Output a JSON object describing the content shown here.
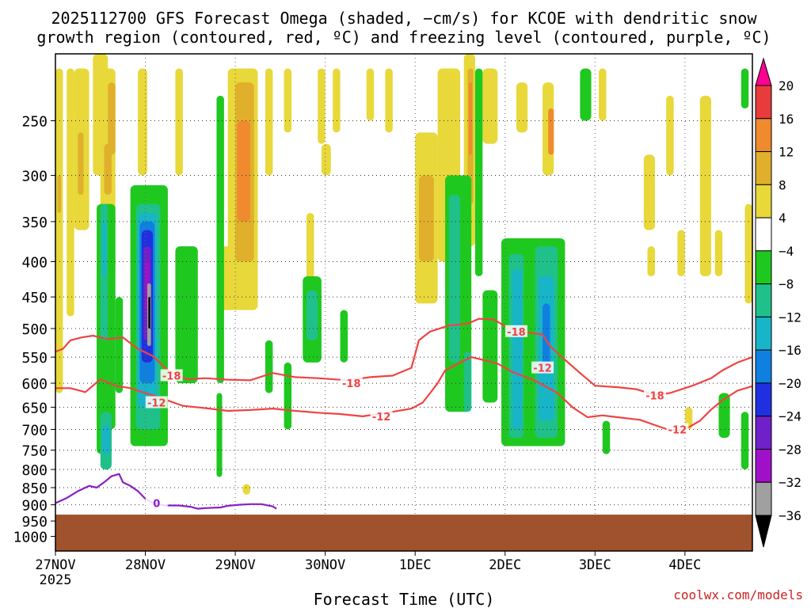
{
  "chart_data": {
    "type": "heatmap",
    "title_line1": "2025112700 GFS Forecast Omega (shaded, −cm/s) for KCOE with dendritic snow",
    "title_line2": "growth region (contoured, red, ºC) and freezing level (contoured, purple, ºC)",
    "xlabel": "Forecast Time (UTC)",
    "ylabel": "",
    "credit": "coolwx.com/models",
    "x_unit": "hours since 2025-11-27 00Z",
    "xlim": [
      0,
      186
    ],
    "x_ticks": [
      {
        "value": 0,
        "label": "27NOV",
        "sublabel": "2025"
      },
      {
        "value": 24,
        "label": "28NOV"
      },
      {
        "value": 48,
        "label": "29NOV"
      },
      {
        "value": 72,
        "label": "30NOV"
      },
      {
        "value": 96,
        "label": "1DEC"
      },
      {
        "value": 120,
        "label": "2DEC"
      },
      {
        "value": 144,
        "label": "3DEC"
      },
      {
        "value": 168,
        "label": "4DEC"
      }
    ],
    "y_unit": "hPa",
    "ylim": [
      1050,
      200
    ],
    "y_ticks": [
      250,
      300,
      350,
      400,
      450,
      500,
      550,
      600,
      650,
      700,
      750,
      800,
      850,
      900,
      950,
      1000
    ],
    "ground_level_hPa": 930,
    "colorbar": {
      "labels": [
        "20",
        "16",
        "12",
        "8",
        "4",
        "−4",
        "−8",
        "−12",
        "−16",
        "−20",
        "−24",
        "−28",
        "−32",
        "−36"
      ],
      "colors": [
        "#ff0090",
        "#e83c3c",
        "#ef8a2e",
        "#e0b02c",
        "#e8d83a",
        "#ffffff",
        "#1fc81f",
        "#20c08a",
        "#18b4c8",
        "#1080e0",
        "#2030e0",
        "#7020c8",
        "#a010c8",
        "#a0a0a0",
        "#000000"
      ]
    },
    "bins": [
      {
        "min": 4,
        "max": 8,
        "color": "#e8d83a"
      },
      {
        "min": 8,
        "max": 12,
        "color": "#e0b02c"
      },
      {
        "min": 12,
        "max": 16,
        "color": "#ef8a2e"
      },
      {
        "min": -8,
        "max": -4,
        "color": "#1fc81f"
      },
      {
        "min": -12,
        "max": -8,
        "color": "#20c08a"
      },
      {
        "min": -16,
        "max": -12,
        "color": "#18b4c8"
      },
      {
        "min": -20,
        "max": -16,
        "color": "#1080e0"
      },
      {
        "min": -24,
        "max": -20,
        "color": "#2030e0"
      },
      {
        "min": -28,
        "max": -24,
        "color": "#7020c8"
      },
      {
        "min": -32,
        "max": -28,
        "color": "#a010c8"
      },
      {
        "min": -36,
        "max": -32,
        "color": "#a0a0a0"
      },
      {
        "min": -40,
        "max": -36,
        "color": "#000000"
      }
    ],
    "omega_features": [
      {
        "t0": 0,
        "t1": 2,
        "p0": 210,
        "p1": 620,
        "v": 6
      },
      {
        "t0": 0.5,
        "t1": 1.5,
        "p0": 300,
        "p1": 340,
        "v": 10
      },
      {
        "t0": 3,
        "t1": 5,
        "p0": 210,
        "p1": 480,
        "v": 6
      },
      {
        "t0": 5,
        "t1": 9,
        "p0": 210,
        "p1": 360,
        "v": 6
      },
      {
        "t0": 6,
        "t1": 7.5,
        "p0": 260,
        "p1": 320,
        "v": 10
      },
      {
        "t0": 10,
        "t1": 14,
        "p0": 200,
        "p1": 300,
        "v": 6
      },
      {
        "t0": 12,
        "t1": 16,
        "p0": 210,
        "p1": 420,
        "v": 6
      },
      {
        "t0": 14,
        "t1": 16,
        "p0": 220,
        "p1": 280,
        "v": 10
      },
      {
        "t0": 13,
        "t1": 15,
        "p0": 270,
        "p1": 320,
        "v": 10
      },
      {
        "t0": 22,
        "t1": 24.5,
        "p0": 210,
        "p1": 300,
        "v": 6
      },
      {
        "t0": 24,
        "t1": 26,
        "p0": 460,
        "p1": 560,
        "v": 6
      },
      {
        "t0": 32,
        "t1": 34,
        "p0": 210,
        "p1": 300,
        "v": 6
      },
      {
        "t0": 33,
        "t1": 35,
        "p0": 400,
        "p1": 560,
        "v": 6
      },
      {
        "t0": 44,
        "t1": 48,
        "p0": 380,
        "p1": 470,
        "v": 6
      },
      {
        "t0": 46,
        "t1": 54,
        "p0": 210,
        "p1": 470,
        "v": 6
      },
      {
        "t0": 48,
        "t1": 53,
        "p0": 220,
        "p1": 400,
        "v": 10
      },
      {
        "t0": 48.5,
        "t1": 52,
        "p0": 250,
        "p1": 350,
        "v": 14
      },
      {
        "t0": 49,
        "t1": 51,
        "p0": 300,
        "p1": 340,
        "v": 18
      },
      {
        "t0": 50,
        "t1": 52,
        "p0": 840,
        "p1": 870,
        "v": 6
      },
      {
        "t0": 56,
        "t1": 58,
        "p0": 210,
        "p1": 300,
        "v": 6
      },
      {
        "t0": 61,
        "t1": 63,
        "p0": 210,
        "p1": 260,
        "v": 6
      },
      {
        "t0": 67,
        "t1": 69,
        "p0": 340,
        "p1": 460,
        "v": 6
      },
      {
        "t0": 70,
        "t1": 72,
        "p0": 210,
        "p1": 270,
        "v": 6
      },
      {
        "t0": 71,
        "t1": 73.5,
        "p0": 270,
        "p1": 300,
        "v": 6
      },
      {
        "t0": 74,
        "t1": 76,
        "p0": 210,
        "p1": 260,
        "v": 6
      },
      {
        "t0": 83,
        "t1": 85,
        "p0": 210,
        "p1": 250,
        "v": 6
      },
      {
        "t0": 88,
        "t1": 90,
        "p0": 210,
        "p1": 260,
        "v": 6
      },
      {
        "t0": 96,
        "t1": 102,
        "p0": 260,
        "p1": 460,
        "v": 6
      },
      {
        "t0": 97,
        "t1": 101,
        "p0": 300,
        "p1": 400,
        "v": 10
      },
      {
        "t0": 102,
        "t1": 108,
        "p0": 210,
        "p1": 400,
        "v": 6
      },
      {
        "t0": 109,
        "t1": 112,
        "p0": 200,
        "p1": 380,
        "v": 6
      },
      {
        "t0": 110,
        "t1": 111.5,
        "p0": 210,
        "p1": 330,
        "v": 10
      },
      {
        "t0": 110.3,
        "t1": 111.2,
        "p0": 220,
        "p1": 280,
        "v": 14
      },
      {
        "t0": 114,
        "t1": 118,
        "p0": 210,
        "p1": 270,
        "v": 6
      },
      {
        "t0": 123,
        "t1": 126,
        "p0": 220,
        "p1": 260,
        "v": 6
      },
      {
        "t0": 130,
        "t1": 133,
        "p0": 220,
        "p1": 300,
        "v": 6
      },
      {
        "t0": 131.5,
        "t1": 133,
        "p0": 240,
        "p1": 280,
        "v": 14
      },
      {
        "t0": 145,
        "t1": 147,
        "p0": 210,
        "p1": 250,
        "v": 6
      },
      {
        "t0": 157,
        "t1": 160,
        "p0": 280,
        "p1": 360,
        "v": 6
      },
      {
        "t0": 158,
        "t1": 160,
        "p0": 380,
        "p1": 420,
        "v": 6
      },
      {
        "t0": 163,
        "t1": 165,
        "p0": 230,
        "p1": 300,
        "v": 6
      },
      {
        "t0": 166,
        "t1": 168,
        "p0": 360,
        "p1": 420,
        "v": 6
      },
      {
        "t0": 168,
        "t1": 170,
        "p0": 650,
        "p1": 700,
        "v": 6
      },
      {
        "t0": 172,
        "t1": 175,
        "p0": 230,
        "p1": 420,
        "v": 6
      },
      {
        "t0": 176,
        "t1": 178,
        "p0": 360,
        "p1": 420,
        "v": 6
      },
      {
        "t0": 184,
        "t1": 186,
        "p0": 330,
        "p1": 460,
        "v": 6
      },
      {
        "t0": 11,
        "t1": 16,
        "p0": 330,
        "p1": 700,
        "v": -6
      },
      {
        "t0": 11,
        "t1": 15,
        "p0": 400,
        "p1": 760,
        "v": -6
      },
      {
        "t0": 12,
        "t1": 15,
        "p0": 660,
        "p1": 800,
        "v": -10
      },
      {
        "t0": 12.5,
        "t1": 14.5,
        "p0": 690,
        "p1": 760,
        "v": -14
      },
      {
        "t0": 12,
        "t1": 14,
        "p0": 330,
        "p1": 520,
        "v": -10
      },
      {
        "t0": 12.5,
        "t1": 13.5,
        "p0": 350,
        "p1": 420,
        "v": -14
      },
      {
        "t0": 16,
        "t1": 18,
        "p0": 450,
        "p1": 620,
        "v": -6
      },
      {
        "t0": 20,
        "t1": 30,
        "p0": 310,
        "p1": 740,
        "v": -6
      },
      {
        "t0": 21.5,
        "t1": 28,
        "p0": 330,
        "p1": 700,
        "v": -10
      },
      {
        "t0": 22,
        "t1": 27,
        "p0": 340,
        "p1": 650,
        "v": -14
      },
      {
        "t0": 22.5,
        "t1": 26.5,
        "p0": 350,
        "p1": 600,
        "v": -18
      },
      {
        "t0": 23,
        "t1": 26,
        "p0": 360,
        "p1": 560,
        "v": -22
      },
      {
        "t0": 23.5,
        "t1": 25.5,
        "p0": 380,
        "p1": 520,
        "v": -26
      },
      {
        "t0": 24,
        "t1": 25,
        "p0": 400,
        "p1": 470,
        "v": -30
      },
      {
        "t0": 24.5,
        "t1": 25.5,
        "p0": 430,
        "p1": 530,
        "v": -34
      },
      {
        "t0": 24.8,
        "t1": 25.3,
        "p0": 450,
        "p1": 500,
        "v": -38
      },
      {
        "t0": 32,
        "t1": 38,
        "p0": 380,
        "p1": 600,
        "v": -6
      },
      {
        "t0": 43,
        "t1": 45,
        "p0": 230,
        "p1": 600,
        "v": -6
      },
      {
        "t0": 43,
        "t1": 44.5,
        "p0": 620,
        "p1": 820,
        "v": -6
      },
      {
        "t0": 56,
        "t1": 58,
        "p0": 520,
        "p1": 620,
        "v": -6
      },
      {
        "t0": 61,
        "t1": 63,
        "p0": 560,
        "p1": 700,
        "v": -6
      },
      {
        "t0": 66,
        "t1": 71,
        "p0": 420,
        "p1": 560,
        "v": -6
      },
      {
        "t0": 67,
        "t1": 70,
        "p0": 440,
        "p1": 520,
        "v": -10
      },
      {
        "t0": 76,
        "t1": 78,
        "p0": 470,
        "p1": 560,
        "v": -6
      },
      {
        "t0": 104,
        "t1": 111,
        "p0": 300,
        "p1": 660,
        "v": -6
      },
      {
        "t0": 105,
        "t1": 108,
        "p0": 320,
        "p1": 560,
        "v": -10
      },
      {
        "t0": 109,
        "t1": 111,
        "p0": 540,
        "p1": 660,
        "v": -10
      },
      {
        "t0": 112,
        "t1": 114,
        "p0": 210,
        "p1": 420,
        "v": -6
      },
      {
        "t0": 114,
        "t1": 118,
        "p0": 440,
        "p1": 640,
        "v": -6
      },
      {
        "t0": 119,
        "t1": 136,
        "p0": 370,
        "p1": 740,
        "v": -6
      },
      {
        "t0": 121,
        "t1": 125,
        "p0": 390,
        "p1": 720,
        "v": -10
      },
      {
        "t0": 122,
        "t1": 124.5,
        "p0": 410,
        "p1": 700,
        "v": -14
      },
      {
        "t0": 128,
        "t1": 134,
        "p0": 380,
        "p1": 720,
        "v": -10
      },
      {
        "t0": 129,
        "t1": 133,
        "p0": 420,
        "p1": 680,
        "v": -14
      },
      {
        "t0": 130,
        "t1": 132,
        "p0": 460,
        "p1": 580,
        "v": -18
      },
      {
        "t0": 140,
        "t1": 143,
        "p0": 210,
        "p1": 250,
        "v": -6
      },
      {
        "t0": 146,
        "t1": 148,
        "p0": 680,
        "p1": 760,
        "v": -6
      },
      {
        "t0": 177,
        "t1": 180,
        "p0": 620,
        "p1": 720,
        "v": -6
      },
      {
        "t0": 183,
        "t1": 185,
        "p0": 660,
        "p1": 800,
        "v": -6
      },
      {
        "t0": 183,
        "t1": 185,
        "p0": 210,
        "p1": 240,
        "v": -6
      }
    ],
    "contours": [
      {
        "name": "-18C isotherm",
        "label": "-18",
        "color": "#ee4444",
        "label_at": [
          [
            31,
            585
          ],
          [
            79,
            600
          ],
          [
            123,
            505
          ],
          [
            160,
            625
          ]
        ],
        "points": [
          [
            0,
            540
          ],
          [
            2,
            535
          ],
          [
            4,
            520
          ],
          [
            7,
            515
          ],
          [
            10,
            512
          ],
          [
            14,
            518
          ],
          [
            18,
            515
          ],
          [
            22,
            535
          ],
          [
            26,
            548
          ],
          [
            30,
            575
          ],
          [
            35,
            592
          ],
          [
            40,
            590
          ],
          [
            46,
            593
          ],
          [
            52,
            594
          ],
          [
            58,
            580
          ],
          [
            64,
            588
          ],
          [
            70,
            590
          ],
          [
            78,
            594
          ],
          [
            84,
            588
          ],
          [
            90,
            585
          ],
          [
            95,
            570
          ],
          [
            97,
            520
          ],
          [
            100,
            505
          ],
          [
            105,
            495
          ],
          [
            110,
            492
          ],
          [
            113,
            484
          ],
          [
            117,
            485
          ],
          [
            121,
            500
          ],
          [
            124,
            505
          ],
          [
            130,
            510
          ],
          [
            132,
            530
          ],
          [
            136,
            555
          ],
          [
            140,
            580
          ],
          [
            144,
            605
          ],
          [
            150,
            608
          ],
          [
            155,
            612
          ],
          [
            160,
            624
          ],
          [
            164,
            620
          ],
          [
            170,
            605
          ],
          [
            175,
            590
          ],
          [
            178,
            575
          ],
          [
            182,
            560
          ],
          [
            186,
            550
          ]
        ]
      },
      {
        "name": "-12C isotherm",
        "label": "-12",
        "color": "#ee4444",
        "label_at": [
          [
            27,
            640
          ],
          [
            87,
            670
          ],
          [
            130,
            570
          ],
          [
            166,
            700
          ]
        ],
        "points": [
          [
            0,
            610
          ],
          [
            4,
            610
          ],
          [
            8,
            618
          ],
          [
            12,
            592
          ],
          [
            16,
            605
          ],
          [
            20,
            610
          ],
          [
            24,
            620
          ],
          [
            28,
            630
          ],
          [
            34,
            647
          ],
          [
            40,
            652
          ],
          [
            46,
            658
          ],
          [
            52,
            656
          ],
          [
            58,
            653
          ],
          [
            64,
            658
          ],
          [
            70,
            662
          ],
          [
            76,
            665
          ],
          [
            82,
            670
          ],
          [
            90,
            660
          ],
          [
            95,
            653
          ],
          [
            98,
            640
          ],
          [
            100,
            620
          ],
          [
            102,
            600
          ],
          [
            104,
            575
          ],
          [
            108,
            560
          ],
          [
            111,
            550
          ],
          [
            114,
            555
          ],
          [
            118,
            562
          ],
          [
            122,
            578
          ],
          [
            128,
            595
          ],
          [
            134,
            620
          ],
          [
            138,
            650
          ],
          [
            142,
            672
          ],
          [
            146,
            668
          ],
          [
            150,
            672
          ],
          [
            156,
            678
          ],
          [
            160,
            690
          ],
          [
            164,
            702
          ],
          [
            168,
            700
          ],
          [
            172,
            680
          ],
          [
            175,
            655
          ],
          [
            178,
            635
          ],
          [
            182,
            615
          ],
          [
            186,
            606
          ]
        ]
      },
      {
        "name": "0C freezing level",
        "label": "0",
        "color": "#8a1ec8",
        "label_at": [
          [
            27,
            895
          ]
        ],
        "points": [
          [
            0,
            895
          ],
          [
            3,
            880
          ],
          [
            6,
            860
          ],
          [
            9,
            845
          ],
          [
            11,
            850
          ],
          [
            13,
            835
          ],
          [
            15,
            818
          ],
          [
            17,
            812
          ],
          [
            18,
            835
          ],
          [
            20,
            845
          ],
          [
            22,
            860
          ],
          [
            24,
            882
          ],
          [
            26,
            895
          ],
          [
            28,
            900
          ],
          [
            30,
            902
          ],
          [
            33,
            902
          ],
          [
            36,
            906
          ],
          [
            38,
            912
          ],
          [
            40,
            910
          ],
          [
            44,
            908
          ],
          [
            46,
            903
          ],
          [
            49,
            900
          ],
          [
            52,
            898
          ],
          [
            55,
            898
          ],
          [
            58,
            905
          ],
          [
            59,
            912
          ]
        ]
      }
    ]
  }
}
